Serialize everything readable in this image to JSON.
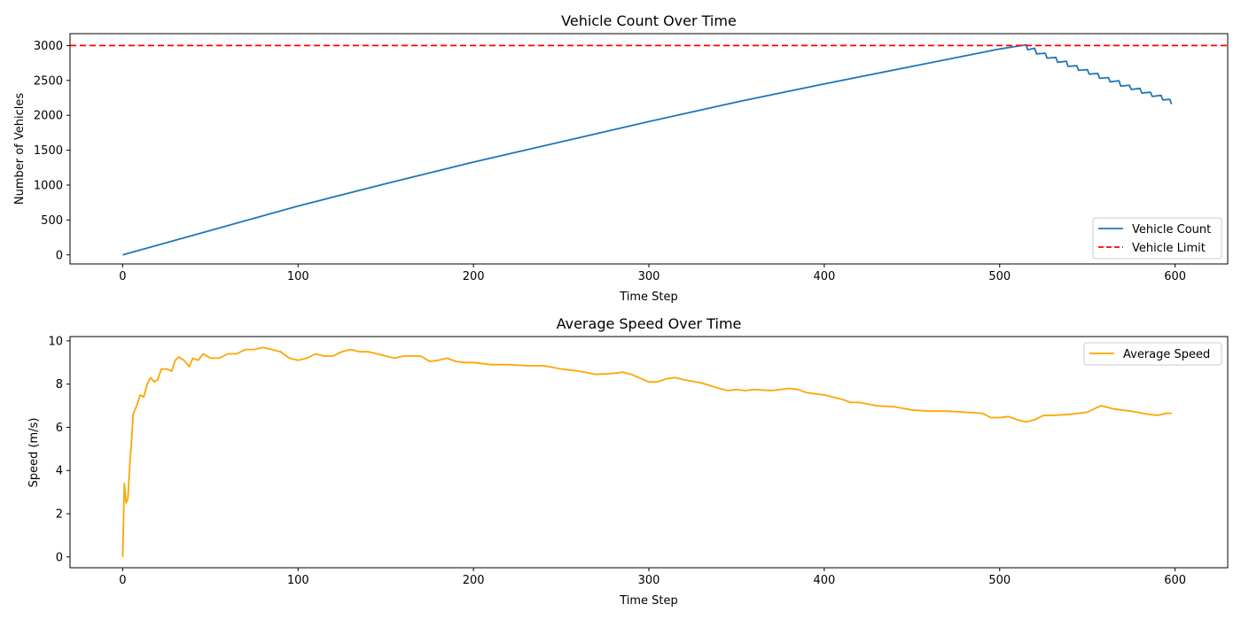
{
  "chart_data": [
    {
      "type": "line",
      "title": "Vehicle Count Over Time",
      "xlabel": "Time Step",
      "ylabel": "Number of Vehicles",
      "xlim": [
        -30,
        630
      ],
      "ylim": [
        -130,
        3170
      ],
      "xticks": [
        0,
        100,
        200,
        300,
        400,
        500,
        600
      ],
      "yticks": [
        0,
        500,
        1000,
        1500,
        2000,
        2500,
        3000
      ],
      "legend_position": "lower-right",
      "grid": false,
      "series": [
        {
          "name": "Vehicle Count",
          "color": "#1f77b4",
          "style": "solid",
          "x": [
            0,
            50,
            100,
            150,
            200,
            250,
            300,
            350,
            400,
            450,
            500,
            515,
            516,
            520,
            521,
            526,
            527,
            532,
            533,
            538,
            539,
            544,
            545,
            550,
            551,
            556,
            557,
            562,
            563,
            568,
            569,
            574,
            575,
            580,
            581,
            586,
            587,
            592,
            593,
            597,
            598
          ],
          "y": [
            0,
            350,
            700,
            1020,
            1330,
            1620,
            1910,
            2190,
            2450,
            2700,
            2950,
            3010,
            2940,
            2960,
            2880,
            2890,
            2820,
            2830,
            2760,
            2775,
            2700,
            2710,
            2645,
            2655,
            2590,
            2600,
            2530,
            2540,
            2480,
            2495,
            2420,
            2430,
            2370,
            2385,
            2320,
            2330,
            2270,
            2285,
            2220,
            2230,
            2160
          ]
        },
        {
          "name": "Vehicle Limit",
          "color": "#ff0000",
          "style": "dashed",
          "x": [
            -30,
            630
          ],
          "y": [
            3000,
            3000
          ]
        }
      ]
    },
    {
      "type": "line",
      "title": "Average Speed Over Time",
      "xlabel": "Time Step",
      "ylabel": "Speed (m/s)",
      "xlim": [
        -30,
        630
      ],
      "ylim": [
        -0.5,
        10.2
      ],
      "xticks": [
        0,
        100,
        200,
        300,
        400,
        500,
        600
      ],
      "yticks": [
        0,
        2,
        4,
        6,
        8,
        10
      ],
      "legend_position": "upper-right",
      "grid": false,
      "series": [
        {
          "name": "Average Speed",
          "color": "#ffa500",
          "style": "solid",
          "x": [
            0,
            1,
            2,
            3,
            4,
            5,
            6,
            8,
            10,
            12,
            14,
            16,
            18,
            20,
            22,
            25,
            28,
            30,
            32,
            35,
            38,
            40,
            43,
            46,
            50,
            55,
            60,
            65,
            70,
            75,
            80,
            85,
            90,
            95,
            100,
            105,
            110,
            115,
            120,
            125,
            130,
            135,
            140,
            145,
            150,
            155,
            160,
            165,
            170,
            175,
            180,
            185,
            190,
            195,
            200,
            210,
            220,
            230,
            240,
            250,
            260,
            270,
            280,
            285,
            290,
            300,
            305,
            310,
            315,
            320,
            330,
            340,
            345,
            350,
            355,
            360,
            370,
            380,
            385,
            390,
            400,
            410,
            415,
            420,
            430,
            440,
            450,
            460,
            470,
            480,
            490,
            495,
            500,
            505,
            510,
            515,
            520,
            525,
            530,
            540,
            550,
            555,
            558,
            565,
            575,
            585,
            590,
            595,
            598
          ],
          "y": [
            0,
            3.4,
            2.5,
            2.7,
            4.2,
            5.3,
            6.6,
            7.0,
            7.5,
            7.4,
            8.0,
            8.3,
            8.1,
            8.2,
            8.7,
            8.7,
            8.6,
            9.1,
            9.25,
            9.1,
            8.8,
            9.2,
            9.1,
            9.4,
            9.2,
            9.2,
            9.4,
            9.4,
            9.6,
            9.6,
            9.7,
            9.6,
            9.5,
            9.2,
            9.1,
            9.2,
            9.4,
            9.3,
            9.3,
            9.5,
            9.6,
            9.5,
            9.5,
            9.4,
            9.3,
            9.2,
            9.3,
            9.3,
            9.3,
            9.05,
            9.1,
            9.2,
            9.05,
            9.0,
            9.0,
            8.9,
            8.9,
            8.85,
            8.85,
            8.7,
            8.6,
            8.45,
            8.5,
            8.55,
            8.45,
            8.1,
            8.1,
            8.25,
            8.3,
            8.2,
            8.05,
            7.8,
            7.7,
            7.75,
            7.7,
            7.75,
            7.7,
            7.8,
            7.75,
            7.6,
            7.5,
            7.3,
            7.15,
            7.15,
            7.0,
            6.95,
            6.8,
            6.75,
            6.75,
            6.7,
            6.65,
            6.45,
            6.45,
            6.5,
            6.35,
            6.25,
            6.35,
            6.55,
            6.55,
            6.6,
            6.7,
            6.9,
            7.0,
            6.85,
            6.75,
            6.6,
            6.55,
            6.65,
            6.65
          ]
        }
      ]
    }
  ]
}
